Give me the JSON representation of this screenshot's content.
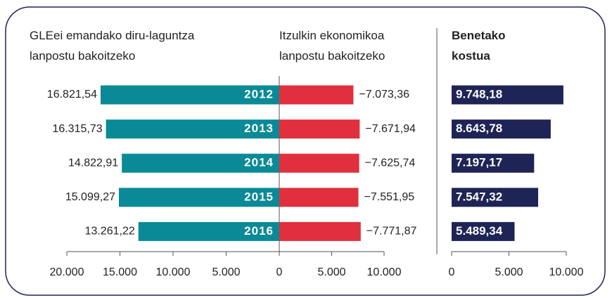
{
  "chart_data": {
    "type": "bar",
    "orientation": "horizontal",
    "categories": [
      "2012",
      "2013",
      "2014",
      "2015",
      "2016"
    ],
    "series": [
      {
        "name": "GLEei emandako diru-laguntza lanpostu bakoitzeko",
        "color": "#0a8a96",
        "values": [
          16821.54,
          16315.73,
          14822.91,
          15099.27,
          13261.22
        ],
        "value_labels": [
          "16.821,54",
          "16.315,73",
          "14.822,91",
          "15.099,27",
          "13.261,22"
        ],
        "xlim": [
          20000,
          0
        ],
        "xticks": [
          {
            "value": 20000,
            "label": "20.000"
          },
          {
            "value": 15000,
            "label": "15.000"
          },
          {
            "value": 10000,
            "label": "10.000"
          },
          {
            "value": 5000,
            "label": "5.000"
          },
          0
        ]
      },
      {
        "name": "Itzulkin ekonomikoa lanpostu bakoitzeko",
        "color": "#e0303e",
        "values": [
          -7073.36,
          -7671.94,
          -7625.74,
          -7551.95,
          -7771.87
        ],
        "value_labels": [
          "−7.073,36",
          "−7.671,94",
          "−7.625,74",
          "−7.551,95",
          "−7.771,87"
        ],
        "xlim": [
          0,
          -10000
        ],
        "xticks": [
          {
            "value": -5000,
            "label": "5.000"
          },
          {
            "value": -10000,
            "label": "10.000"
          }
        ]
      },
      {
        "name": "Benetako kostua",
        "color": "#1f2456",
        "values": [
          9748.18,
          8643.78,
          7197.17,
          7547.32,
          5489.34
        ],
        "value_labels": [
          "9.748,18",
          "8.643,78",
          "7.197,17",
          "7.547,32",
          "5.489,34"
        ],
        "xlim": [
          0,
          10000
        ],
        "xticks": [
          0,
          {
            "value": 5000,
            "label": "5.000"
          },
          {
            "value": 10000,
            "label": "10.000"
          }
        ]
      }
    ]
  }
}
